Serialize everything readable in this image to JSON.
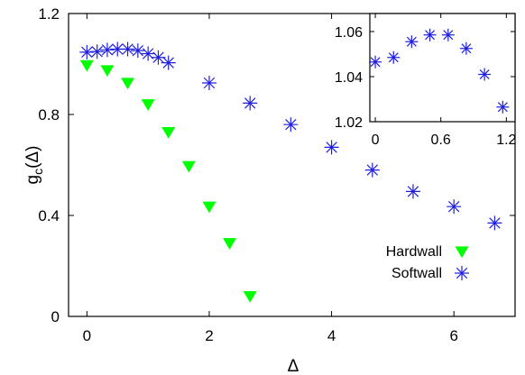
{
  "chart_data": {
    "type": "scatter",
    "xlabel": "Δ",
    "ylabel_main": "g",
    "ylabel_sub": "c",
    "ylabel_arg": "(Δ)",
    "xlim": [
      -0.3,
      7.0
    ],
    "ylim": [
      0,
      1.2
    ],
    "xticks": [
      0,
      2,
      4,
      6
    ],
    "yticks": [
      0,
      0.4,
      0.8,
      1.2
    ],
    "x_tick_labels": [
      "0",
      "2",
      "4",
      "6"
    ],
    "y_tick_labels": [
      "0",
      "0.4",
      "0.8",
      "1.2"
    ],
    "legend": "bottom-right",
    "series": [
      {
        "name": "Hardwall",
        "marker": "triangle-down",
        "color": "#00ff00",
        "x": [
          0.0,
          0.333,
          0.667,
          1.0,
          1.333,
          1.667,
          2.0,
          2.333,
          2.667
        ],
        "y": [
          0.995,
          0.975,
          0.925,
          0.84,
          0.73,
          0.595,
          0.435,
          0.29,
          0.08
        ]
      },
      {
        "name": "Softwall",
        "marker": "asterisk",
        "color": "#1f1fe0",
        "x": [
          0.0,
          0.167,
          0.333,
          0.5,
          0.667,
          0.833,
          1.0,
          1.167,
          1.333,
          2.0,
          2.667,
          3.333,
          4.0,
          4.667,
          5.333,
          6.0,
          6.667
        ],
        "y": [
          1.047,
          1.049,
          1.056,
          1.059,
          1.059,
          1.053,
          1.041,
          1.026,
          1.005,
          0.925,
          0.845,
          0.76,
          0.67,
          0.58,
          0.495,
          0.435,
          0.37
        ]
      }
    ],
    "inset": {
      "type": "scatter",
      "series_name": "Softwall",
      "xlim": [
        -0.05,
        1.28
      ],
      "ylim": [
        1.02,
        1.068
      ],
      "xticks": [
        0,
        0.6,
        1.2
      ],
      "yticks": [
        1.02,
        1.04,
        1.06
      ],
      "x_tick_labels": [
        "0",
        "0.6",
        "1.2"
      ],
      "y_tick_labels": [
        "1.02",
        "1.04",
        "1.06"
      ],
      "x": [
        0.0,
        0.167,
        0.333,
        0.5,
        0.667,
        0.833,
        1.0,
        1.167
      ],
      "y": [
        1.0465,
        1.0485,
        1.0555,
        1.0585,
        1.0585,
        1.0525,
        1.041,
        1.0265
      ]
    }
  }
}
